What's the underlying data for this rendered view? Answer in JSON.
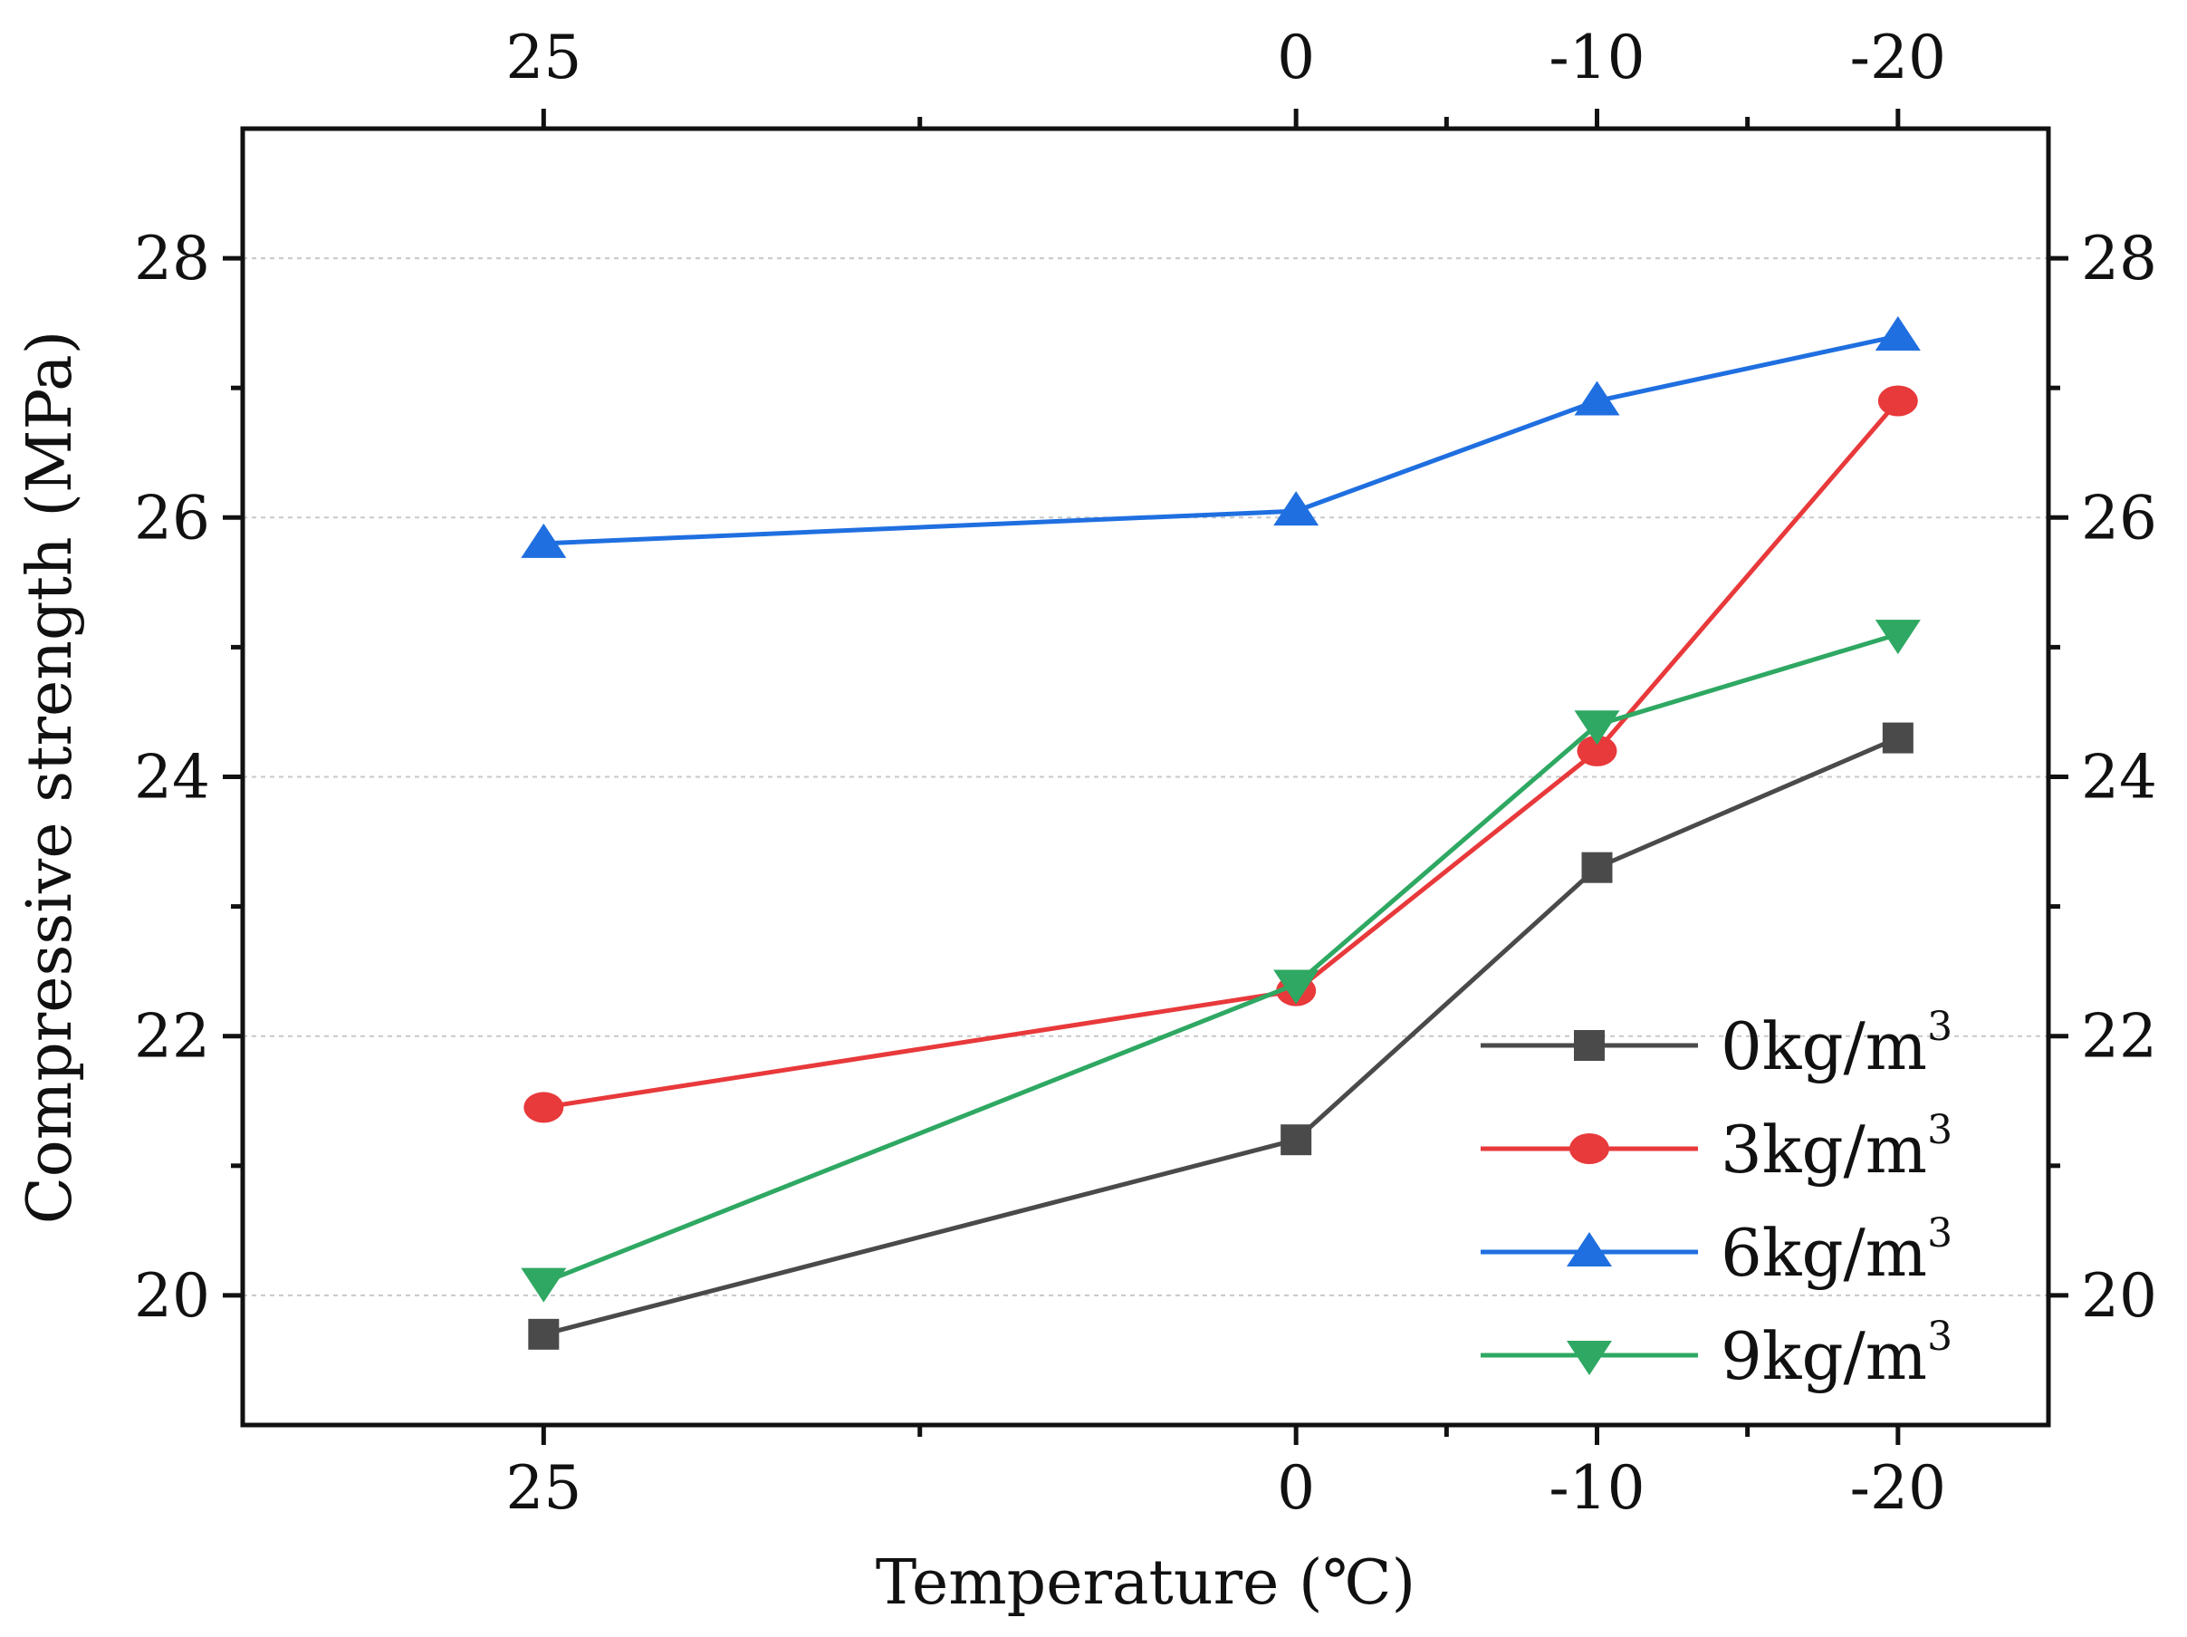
{
  "chart_data": {
    "type": "line",
    "title": "",
    "xlabel": "Temperature (℃)",
    "ylabel": "Compressive strength (MPa)",
    "x_top_axis_mirrored": true,
    "y_right_axis_mirrored": true,
    "categories": [
      "25",
      "0",
      "-10",
      "-20"
    ],
    "x": [
      25,
      0,
      -10,
      -20
    ],
    "xlim": [
      35,
      -25
    ],
    "ylim": [
      19,
      29
    ],
    "yticks": [
      20,
      22,
      24,
      26,
      28
    ],
    "grid": true,
    "legend_position": "bottom-right",
    "series": [
      {
        "name": "0kg/m",
        "unit_sup": "3",
        "marker": "square",
        "color": "#4a4a4a",
        "values": [
          19.7,
          21.2,
          23.3,
          24.3
        ]
      },
      {
        "name": "3kg/m",
        "unit_sup": "3",
        "marker": "circle",
        "color": "#e8393b",
        "values": [
          21.45,
          22.35,
          24.2,
          26.9
        ]
      },
      {
        "name": "6kg/m",
        "unit_sup": "3",
        "marker": "triangle-up",
        "color": "#1f6fe0",
        "values": [
          25.8,
          26.05,
          26.9,
          27.4
        ]
      },
      {
        "name": "9kg/m",
        "unit_sup": "3",
        "marker": "triangle-down",
        "color": "#2ea862",
        "values": [
          20.1,
          22.4,
          24.4,
          25.1
        ]
      }
    ]
  }
}
